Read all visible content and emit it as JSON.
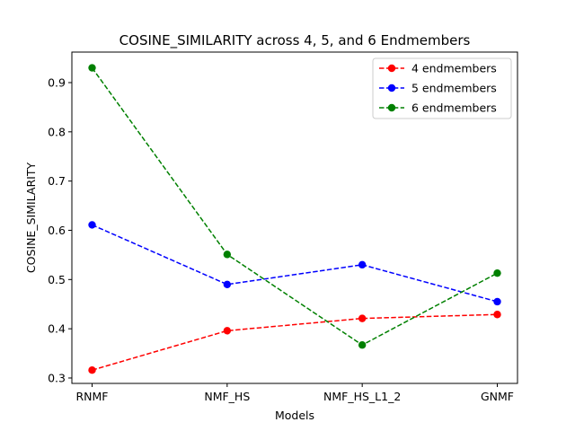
{
  "chart_data": {
    "type": "line",
    "title": "COSINE_SIMILARITY across 4, 5, and 6 Endmembers",
    "xlabel": "Models",
    "ylabel": "COSINE_SIMILARITY",
    "categories": [
      "RNMF",
      "NMF_HS",
      "NMF_HS_L1_2",
      "GNMF"
    ],
    "ylim": [
      0.289,
      0.962
    ],
    "yticks": [
      0.3,
      0.4,
      0.5,
      0.6,
      0.7,
      0.8,
      0.9
    ],
    "ytick_labels": [
      "0.3",
      "0.4",
      "0.5",
      "0.6",
      "0.7",
      "0.8",
      "0.9"
    ],
    "grid": false,
    "legend_position": "top-right",
    "series": [
      {
        "name": "4 endmembers",
        "color": "#ff0000",
        "values": [
          0.316,
          0.396,
          0.421,
          0.429
        ]
      },
      {
        "name": "5 endmembers",
        "color": "#0000ff",
        "values": [
          0.611,
          0.49,
          0.53,
          0.455
        ]
      },
      {
        "name": "6 endmembers",
        "color": "#008000",
        "values": [
          0.93,
          0.551,
          0.367,
          0.513
        ]
      }
    ]
  }
}
